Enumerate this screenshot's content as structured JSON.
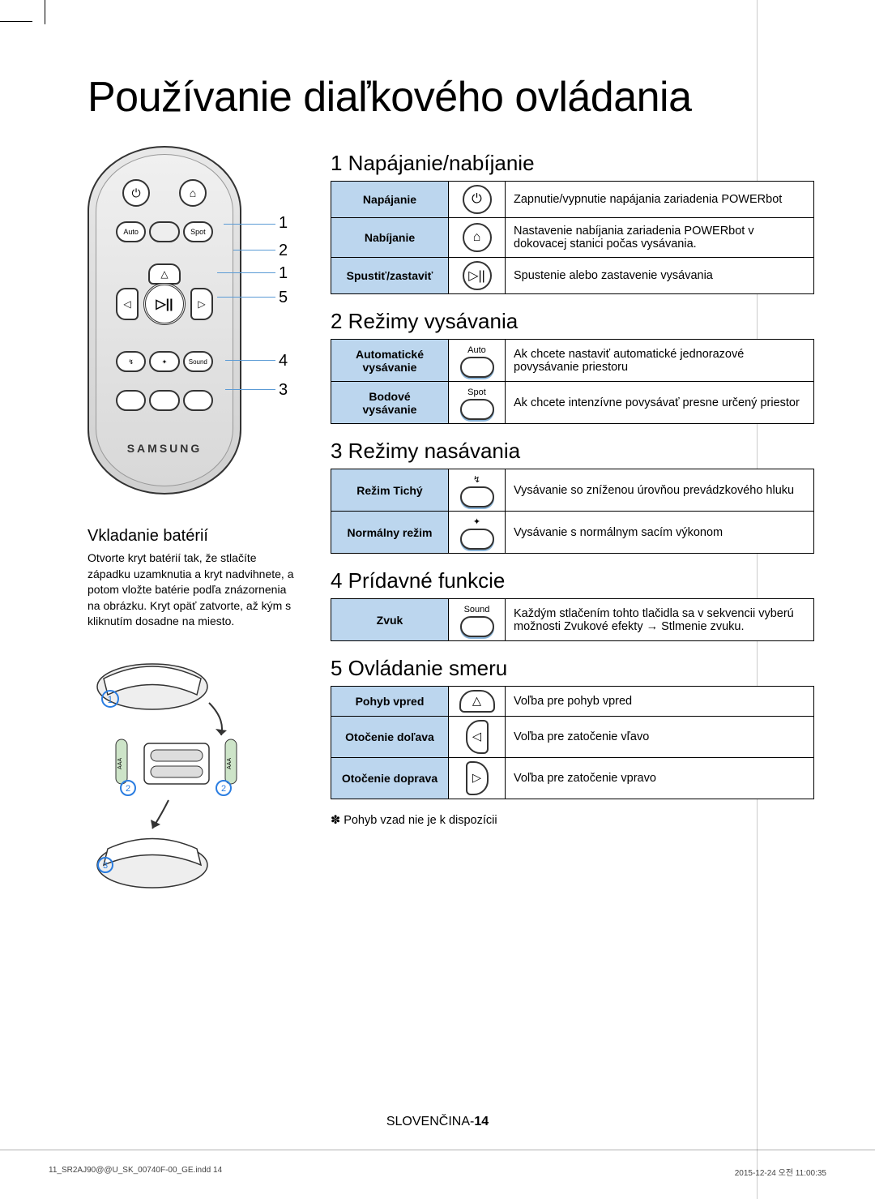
{
  "title": "Používanie diaľkového ovládania",
  "remote": {
    "brand": "SAMSUNG",
    "top_row_labels": [
      "Auto",
      "Spot"
    ],
    "mode_row_right_label": "Sound",
    "callouts": [
      "1",
      "2",
      "1",
      "5",
      "4",
      "3"
    ]
  },
  "battery": {
    "heading": "Vkladanie batérií",
    "text": "Otvorte kryt batérií tak, že stlačíte západku uzamknutia a kryt nadvihnete, a potom vložte batérie podľa znázornenia na obrázku. Kryt opäť zatvorte, až kým s kliknutím dosadne na miesto."
  },
  "sections": [
    {
      "heading": "1 Napájanie/nabíjanie",
      "rows": [
        {
          "label": "Napájanie",
          "icon_type": "circle",
          "icon_glyph": "⏻",
          "desc": "Zapnutie/vypnutie napájania zariadenia POWERbot"
        },
        {
          "label": "Nabíjanie",
          "icon_type": "circle",
          "icon_glyph": "⌂",
          "desc": "Nastavenie nabíjania zariadenia POWERbot v dokovacej stanici počas vysávania."
        },
        {
          "label": "Spustiť/zastaviť",
          "icon_type": "circle",
          "icon_glyph": "▷||",
          "desc": "Spustenie alebo zastavenie vysávania"
        }
      ]
    },
    {
      "heading": "2 Režimy vysávania",
      "rows": [
        {
          "label": "Automatické vysávanie",
          "icon_type": "pill",
          "icon_label": "Auto",
          "desc": "Ak chcete nastaviť automatické jednorazové povysávanie priestoru"
        },
        {
          "label": "Bodové vysávanie",
          "icon_type": "pill",
          "icon_label": "Spot",
          "desc": "Ak chcete intenzívne povysávať presne určený priestor"
        }
      ]
    },
    {
      "heading": "3 Režimy nasávania",
      "rows": [
        {
          "label": "Režim Tichý",
          "icon_type": "pill",
          "icon_label": "↯",
          "desc": "Vysávanie so zníženou úrovňou prevádzkového hluku"
        },
        {
          "label": "Normálny režim",
          "icon_type": "pill",
          "icon_label": "✦",
          "desc": "Vysávanie s normálnym sacím výkonom"
        }
      ]
    },
    {
      "heading": "4 Prídavné funkcie",
      "rows": [
        {
          "label": "Zvuk",
          "icon_type": "pill",
          "icon_label": "Sound",
          "desc": "Každým stlačením tohto tlačidla sa v sekvencii vyberú možnosti Zvukové efekty → Stlmenie zvuku."
        }
      ]
    },
    {
      "heading": "5 Ovládanie smeru",
      "rows": [
        {
          "label": "Pohyb vpred",
          "icon_type": "dpad-up",
          "icon_glyph": "△",
          "desc": "Voľba pre pohyb vpred"
        },
        {
          "label": "Otočenie doľava",
          "icon_type": "dpad-left",
          "icon_glyph": "◁",
          "desc": "Voľba pre zatočenie vľavo"
        },
        {
          "label": "Otočenie doprava",
          "icon_type": "dpad-right",
          "icon_glyph": "▷",
          "desc": "Voľba pre zatočenie vpravo"
        }
      ],
      "note": "Pohyb vzad nie je k dispozícii"
    }
  ],
  "footer": {
    "lang": "SLOVENČINA-",
    "page": "14"
  },
  "print": {
    "left": "11_SR2AJ90@@U_SK_00740F-00_GE.indd   14",
    "right": "2015-12-24   오전 11:00:35"
  },
  "colors": {
    "header_bg": "#bcd6ee",
    "callout_line": "#5b9bd5"
  }
}
